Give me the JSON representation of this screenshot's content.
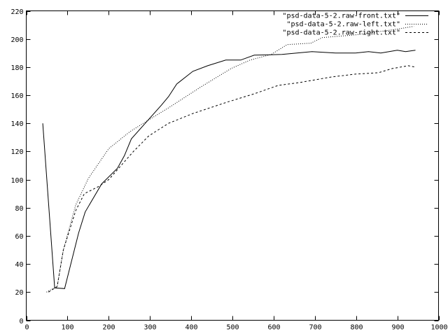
{
  "chart_data": {
    "type": "line",
    "title": "",
    "xlabel": "",
    "ylabel": "",
    "xlim": [
      0,
      1000
    ],
    "ylim": [
      0,
      220
    ],
    "xticks": [
      0,
      100,
      200,
      300,
      400,
      500,
      600,
      700,
      800,
      900,
      1000
    ],
    "yticks": [
      0,
      20,
      40,
      60,
      80,
      100,
      120,
      140,
      160,
      180,
      200,
      220
    ],
    "grid": false,
    "legend_position": "top-right",
    "series": [
      {
        "name": "\"psd-data-5-2.raw-front.txt\"",
        "style": "solid",
        "color": "#000000",
        "x": [
          40,
          69,
          93,
          127,
          143,
          183,
          221,
          238,
          255,
          328,
          345,
          365,
          404,
          440,
          484,
          520,
          553,
          620,
          693,
          750,
          798,
          830,
          860,
          900,
          920,
          944
        ],
        "y": [
          140,
          23,
          22.5,
          62,
          77,
          97,
          108,
          117,
          129,
          153,
          159,
          168,
          177,
          181,
          185,
          185,
          188.5,
          189,
          191,
          190,
          190,
          191,
          190,
          192,
          191,
          192
        ]
      },
      {
        "name": "\"psd-data-5-2.raw-left.txt\"",
        "style": "dotted",
        "color": "#000000",
        "x": [
          49,
          75,
          90,
          120,
          151,
          200,
          251,
          300,
          345,
          424,
          497,
          543,
          594,
          633,
          690,
          718,
          760,
          800,
          850,
          900,
          940
        ],
        "y": [
          20,
          24,
          50,
          82,
          101,
          122,
          134,
          143,
          151,
          166,
          179,
          185,
          189,
          196,
          197,
          201,
          202,
          203,
          205,
          207,
          209
        ]
      },
      {
        "name": "\"psd-data-5-2.raw-right.txt\"",
        "style": "dashed",
        "color": "#000000",
        "x": [
          54,
          75,
          90,
          120,
          141,
          175,
          200,
          260,
          297,
          345,
          404,
          486,
          553,
          611,
          662,
          741,
          798,
          854,
          888,
          927,
          944
        ],
        "y": [
          20,
          24,
          50,
          78,
          90,
          95,
          100,
          120,
          131,
          140,
          147,
          155,
          161,
          167,
          169,
          173,
          175,
          176,
          179,
          181,
          180
        ]
      }
    ]
  }
}
